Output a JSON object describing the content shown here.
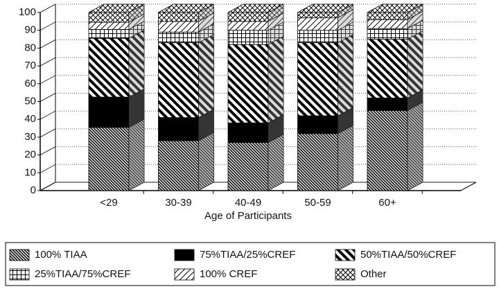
{
  "chart_data": {
    "type": "bar3d-stacked",
    "xlabel": "Age of Participants",
    "categories": [
      "<29",
      "30-39",
      "40-49",
      "50-59",
      "60+"
    ],
    "series": [
      {
        "name": "100% TIAA",
        "pattern": "dense-diagonal",
        "values": [
          35.5,
          28,
          27,
          32,
          45
        ]
      },
      {
        "name": "75%TIAA/25%CREF",
        "pattern": "solid",
        "values": [
          17,
          13,
          11,
          10,
          7
        ]
      },
      {
        "name": "50%TIAA/50%CREF",
        "pattern": "wide-diagonal",
        "values": [
          33,
          42,
          44,
          41,
          33
        ]
      },
      {
        "name": "25%TIAA/75%CREF",
        "pattern": "grid",
        "values": [
          5,
          6,
          8,
          7,
          6
        ]
      },
      {
        "name": "100% CREF",
        "pattern": "thin-diagonal",
        "values": [
          4,
          6,
          5,
          7,
          5
        ]
      },
      {
        "name": "Other",
        "pattern": "crosshatch",
        "values": [
          5.5,
          5,
          5,
          3,
          4
        ]
      }
    ],
    "ylim": [
      0,
      100
    ],
    "yticks": [
      0,
      10,
      20,
      30,
      40,
      50,
      60,
      70,
      80,
      90,
      100
    ],
    "grid": true
  }
}
